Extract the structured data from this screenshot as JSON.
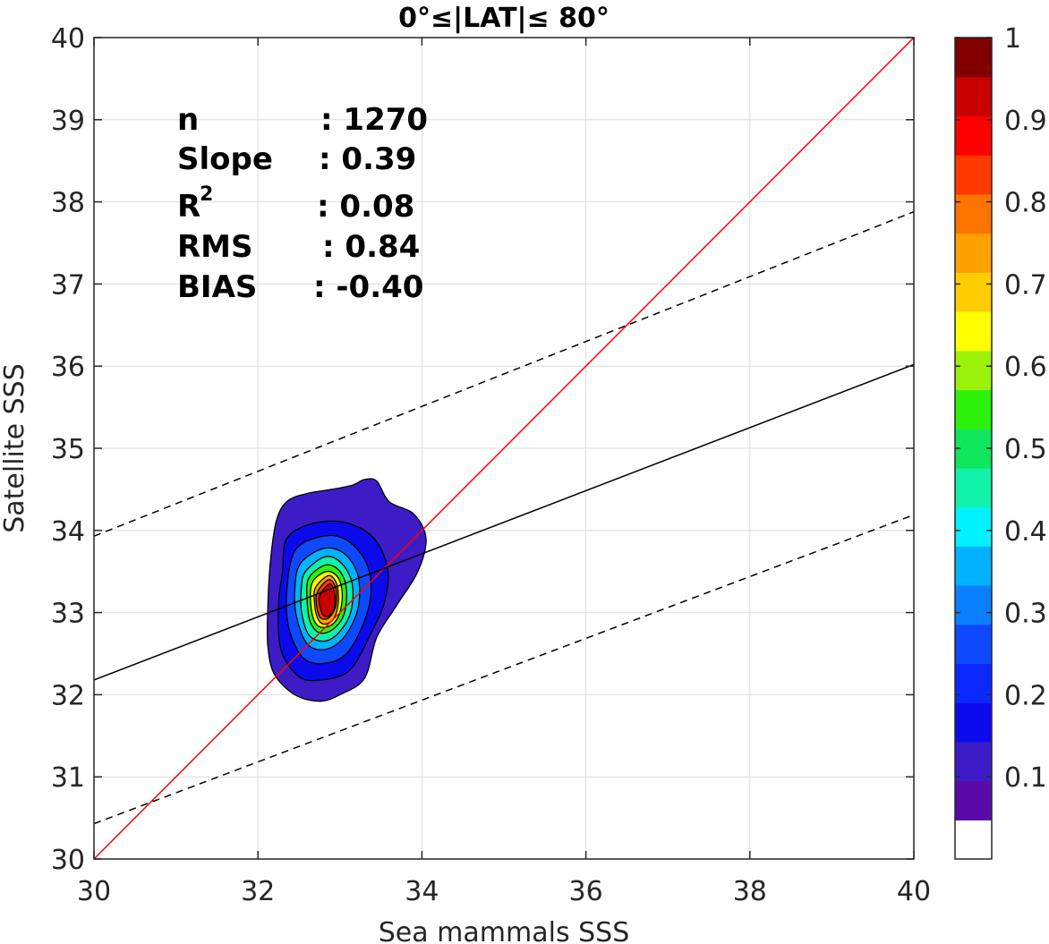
{
  "chart_data": {
    "type": "heatmap",
    "title": "0°≤|LAT|≤ 80°",
    "xlabel": "Sea mammals  SSS",
    "ylabel": "Satellite SSS",
    "xlim": [
      30,
      40
    ],
    "ylim": [
      30,
      40
    ],
    "x_ticks": [
      "30",
      "32",
      "34",
      "36",
      "38",
      "40"
    ],
    "y_ticks": [
      "30",
      "31",
      "32",
      "33",
      "34",
      "35",
      "36",
      "37",
      "38",
      "39",
      "40"
    ],
    "grid": true,
    "stats": [
      {
        "label": "n",
        "value": ": 1270"
      },
      {
        "label": "Slope",
        "value": ": 0.39"
      },
      {
        "label": "R",
        "sup": "2",
        "value": ": 0.08"
      },
      {
        "label": "RMS",
        "value": ": 0.84"
      },
      {
        "label": "BIAS",
        "value": ": -0.40"
      }
    ],
    "lines": [
      {
        "name": "one-to-one",
        "color": "#ff0000",
        "style": "solid",
        "x": [
          30,
          40
        ],
        "y": [
          30,
          40
        ]
      },
      {
        "name": "regression",
        "color": "#000000",
        "style": "solid",
        "x": [
          30,
          40
        ],
        "y": [
          32.18,
          36.02
        ]
      },
      {
        "name": "upper-bound",
        "color": "#000000",
        "style": "dashed",
        "x": [
          30,
          40
        ],
        "y": [
          33.93,
          37.88
        ]
      },
      {
        "name": "lower-bound",
        "color": "#000000",
        "style": "dashed",
        "x": [
          30,
          40
        ],
        "y": [
          30.43,
          34.19
        ]
      }
    ],
    "density_contours": [
      {
        "level": 0.05,
        "color": "#3d1cc7",
        "points": [
          [
            32.35,
            34.35
          ],
          [
            32.6,
            34.45
          ],
          [
            32.9,
            34.5
          ],
          [
            33.15,
            34.55
          ],
          [
            33.3,
            34.62
          ],
          [
            33.45,
            34.6
          ],
          [
            33.6,
            34.35
          ],
          [
            33.9,
            34.2
          ],
          [
            34.05,
            33.9
          ],
          [
            33.95,
            33.5
          ],
          [
            33.7,
            33.1
          ],
          [
            33.45,
            32.7
          ],
          [
            33.3,
            32.2
          ],
          [
            33.0,
            32.0
          ],
          [
            32.75,
            31.92
          ],
          [
            32.45,
            32.0
          ],
          [
            32.2,
            32.25
          ],
          [
            32.12,
            32.6
          ],
          [
            32.12,
            33.05
          ],
          [
            32.15,
            33.6
          ],
          [
            32.22,
            34.1
          ]
        ]
      },
      {
        "level": 0.15,
        "color": "#0a0aec",
        "points": [
          [
            32.35,
            33.9
          ],
          [
            32.65,
            34.08
          ],
          [
            33.05,
            34.1
          ],
          [
            33.4,
            33.92
          ],
          [
            33.58,
            33.55
          ],
          [
            33.55,
            33.15
          ],
          [
            33.38,
            32.75
          ],
          [
            33.12,
            32.3
          ],
          [
            32.78,
            32.18
          ],
          [
            32.5,
            32.22
          ],
          [
            32.28,
            32.55
          ],
          [
            32.25,
            33.1
          ],
          [
            32.3,
            33.5
          ]
        ]
      },
      {
        "level": 0.25,
        "color": "#0f49ff",
        "points": [
          [
            32.45,
            33.75
          ],
          [
            32.75,
            33.92
          ],
          [
            33.05,
            33.9
          ],
          [
            33.3,
            33.65
          ],
          [
            33.38,
            33.3
          ],
          [
            33.3,
            32.9
          ],
          [
            33.08,
            32.5
          ],
          [
            32.8,
            32.38
          ],
          [
            32.55,
            32.45
          ],
          [
            32.38,
            32.8
          ],
          [
            32.35,
            33.25
          ]
        ]
      },
      {
        "level": 0.35,
        "color": "#00b2ff",
        "points": [
          [
            32.52,
            33.6
          ],
          [
            32.8,
            33.78
          ],
          [
            33.05,
            33.72
          ],
          [
            33.22,
            33.45
          ],
          [
            33.22,
            33.05
          ],
          [
            33.05,
            32.7
          ],
          [
            32.82,
            32.55
          ],
          [
            32.6,
            32.62
          ],
          [
            32.47,
            32.95
          ],
          [
            32.45,
            33.3
          ]
        ]
      },
      {
        "level": 0.45,
        "color": "#10f2a9",
        "points": [
          [
            32.58,
            33.5
          ],
          [
            32.82,
            33.68
          ],
          [
            33.02,
            33.6
          ],
          [
            33.15,
            33.35
          ],
          [
            33.13,
            33.0
          ],
          [
            32.98,
            32.75
          ],
          [
            32.8,
            32.65
          ],
          [
            32.62,
            32.73
          ],
          [
            32.53,
            33.02
          ],
          [
            32.53,
            33.3
          ]
        ]
      },
      {
        "level": 0.55,
        "color": "#2cf20a",
        "points": [
          [
            32.62,
            33.42
          ],
          [
            32.83,
            33.58
          ],
          [
            33.0,
            33.5
          ],
          [
            33.08,
            33.28
          ],
          [
            33.05,
            32.98
          ],
          [
            32.92,
            32.8
          ],
          [
            32.76,
            32.75
          ],
          [
            32.64,
            32.88
          ],
          [
            32.6,
            33.15
          ]
        ]
      },
      {
        "level": 0.65,
        "color": "#ffff00",
        "points": [
          [
            32.66,
            33.36
          ],
          [
            32.84,
            33.5
          ],
          [
            32.98,
            33.42
          ],
          [
            33.03,
            33.2
          ],
          [
            32.98,
            32.95
          ],
          [
            32.86,
            32.83
          ],
          [
            32.72,
            32.85
          ],
          [
            32.65,
            33.05
          ]
        ]
      },
      {
        "level": 0.75,
        "color": "#ffa200",
        "points": [
          [
            32.7,
            33.3
          ],
          [
            32.86,
            33.45
          ],
          [
            32.96,
            33.35
          ],
          [
            32.98,
            33.12
          ],
          [
            32.92,
            32.92
          ],
          [
            32.8,
            32.86
          ],
          [
            32.72,
            32.95
          ],
          [
            32.69,
            33.12
          ]
        ]
      },
      {
        "level": 0.85,
        "color": "#ff3a00",
        "points": [
          [
            32.72,
            33.24
          ],
          [
            32.86,
            33.4
          ],
          [
            32.95,
            33.3
          ],
          [
            32.95,
            33.08
          ],
          [
            32.87,
            32.94
          ],
          [
            32.77,
            32.93
          ],
          [
            32.72,
            33.05
          ]
        ]
      },
      {
        "level": 0.95,
        "color": "#c80000",
        "points": [
          [
            32.75,
            33.2
          ],
          [
            32.88,
            33.35
          ],
          [
            32.94,
            33.2
          ],
          [
            32.92,
            33.02
          ],
          [
            32.83,
            32.95
          ],
          [
            32.77,
            33.02
          ]
        ]
      }
    ],
    "colorbar": {
      "min": 0,
      "max": 1,
      "ticks": [
        "0.1",
        "0.2",
        "0.3",
        "0.4",
        "0.5",
        "0.6",
        "0.7",
        "0.8",
        "0.9",
        "1"
      ],
      "tick_values": [
        0.1,
        0.2,
        0.3,
        0.4,
        0.5,
        0.6,
        0.7,
        0.8,
        0.9,
        1.0
      ],
      "colors": [
        "#ffffff",
        "#5a0aa8",
        "#3d1cc7",
        "#0a0aec",
        "#0a28ff",
        "#0f49ff",
        "#0a80ff",
        "#00b2ff",
        "#00f2ff",
        "#10f2a9",
        "#10e65b",
        "#2cf20a",
        "#9af20a",
        "#ffff00",
        "#ffcc00",
        "#ffa200",
        "#ff7400",
        "#ff3a00",
        "#ff0000",
        "#c80000",
        "#800000"
      ]
    }
  }
}
